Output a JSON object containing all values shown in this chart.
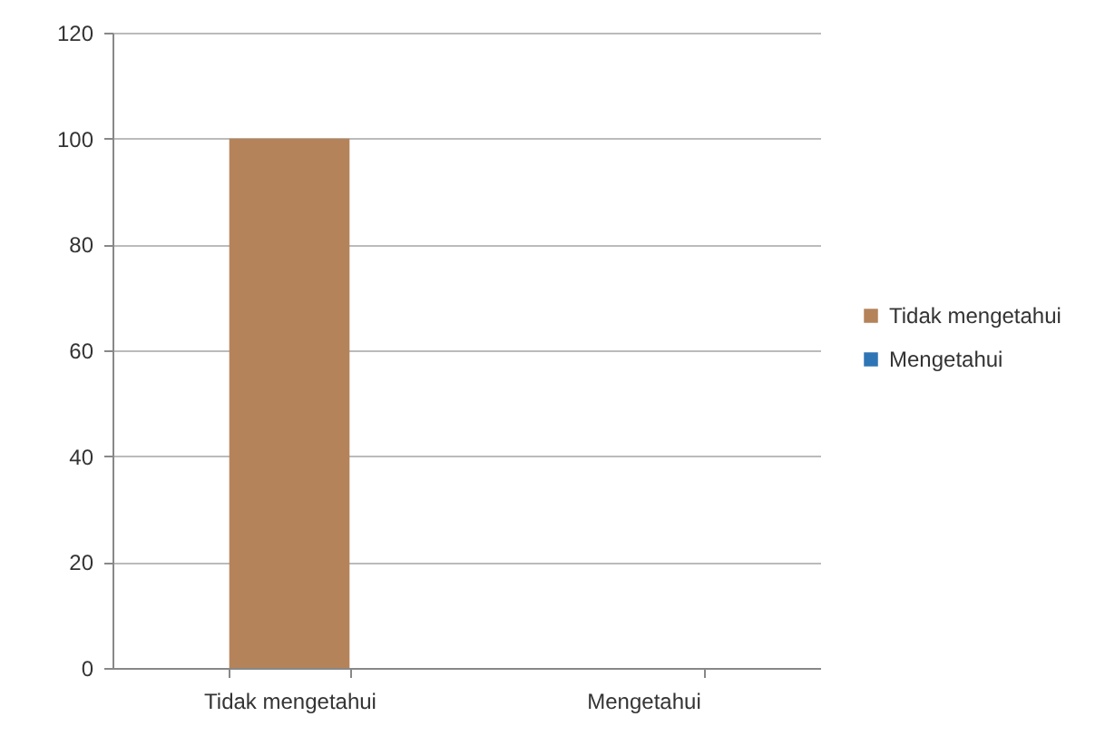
{
  "chart_data": {
    "type": "bar",
    "categories": [
      "Tidak mengetahui",
      "Mengetahui"
    ],
    "series": [
      {
        "name": "Tidak mengetahui",
        "color": "#b5835a",
        "values": [
          100,
          null
        ]
      },
      {
        "name": "Mengetahui",
        "color": "#2e75b6",
        "values": [
          null,
          0
        ]
      }
    ],
    "ylim": [
      0,
      120
    ],
    "yticks": [
      0,
      20,
      40,
      60,
      80,
      100,
      120
    ],
    "grid": "y",
    "legend": "right"
  }
}
